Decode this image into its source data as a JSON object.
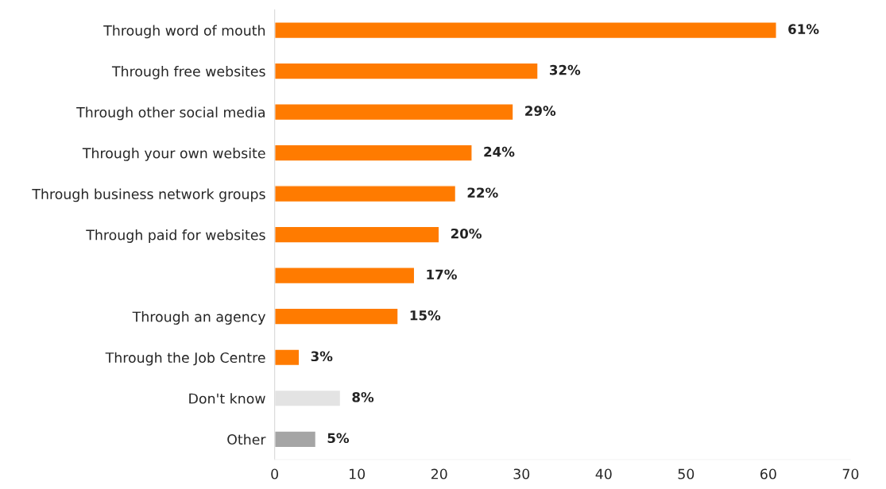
{
  "chart_data": {
    "type": "bar",
    "orientation": "horizontal",
    "categories": [
      "Through word of mouth",
      "Through free websites",
      "Through other social media",
      "Through your own website",
      "Through business network groups",
      "Through paid for websites",
      null,
      "Through an agency",
      "Through the Job Centre",
      "Don't know",
      "Other"
    ],
    "values": [
      61,
      32,
      29,
      24,
      22,
      20,
      17,
      15,
      3,
      8,
      5
    ],
    "colors": [
      "#ff7b00",
      "#ff7b00",
      "#ff7b00",
      "#ff7b00",
      "#ff7b00",
      "#ff7b00",
      "#ff7b00",
      "#ff7b00",
      "#ff7b00",
      "#e3e3e3",
      "#a5a5a5"
    ],
    "value_labels": [
      "61%",
      "32%",
      "29%",
      "24%",
      "22%",
      "20%",
      "17%",
      "15%",
      "3%",
      "8%",
      "5%"
    ],
    "xlim": [
      0,
      70
    ],
    "xticks": [
      0,
      10,
      20,
      30,
      40,
      50,
      60,
      70
    ],
    "grid": false,
    "legend": false
  }
}
